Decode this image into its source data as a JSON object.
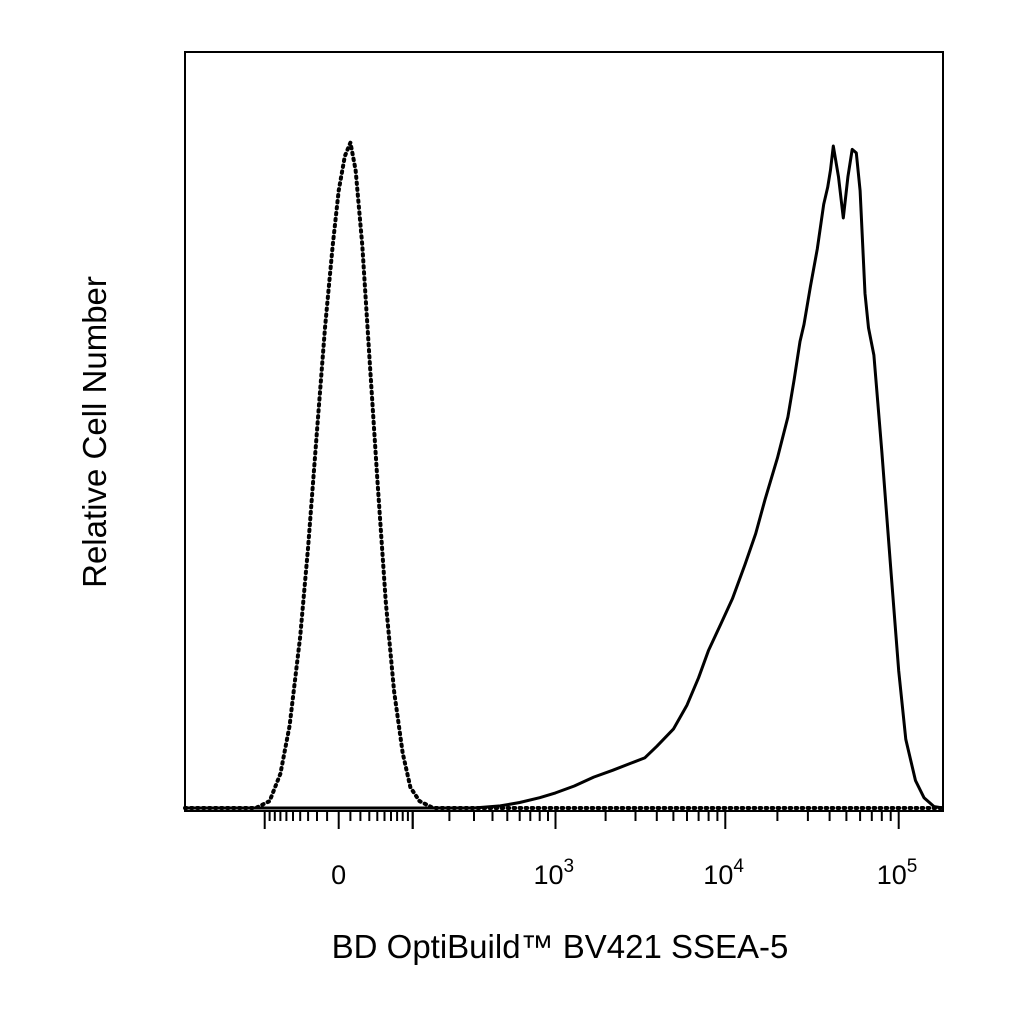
{
  "chart_data": {
    "type": "histogram",
    "title": "",
    "xlabel": "BD OptiBuild™ BV421 SSEA-5",
    "ylabel": "Relative Cell Number",
    "x_scale": "biexponential",
    "xlim": [
      -400,
      180000
    ],
    "ylim": [
      0,
      100
    ],
    "grid": false,
    "legend": "none",
    "x_tick_labels": [
      {
        "value": 0,
        "base": "0",
        "exp": ""
      },
      {
        "value": 1000,
        "base": "10",
        "exp": "3"
      },
      {
        "value": 10000,
        "base": "10",
        "exp": "4"
      },
      {
        "value": 100000,
        "base": "10",
        "exp": "5"
      }
    ],
    "series": [
      {
        "style": "dotted",
        "color": "#000000",
        "points": [
          [
            -400,
            0
          ],
          [
            -120,
            0
          ],
          [
            -90,
            1
          ],
          [
            -70,
            5
          ],
          [
            -55,
            12
          ],
          [
            -40,
            25
          ],
          [
            -30,
            38
          ],
          [
            -20,
            55
          ],
          [
            -12,
            70
          ],
          [
            -5,
            82
          ],
          [
            0,
            90
          ],
          [
            5,
            95
          ],
          [
            10,
            97
          ],
          [
            15,
            93
          ],
          [
            22,
            82
          ],
          [
            30,
            66
          ],
          [
            40,
            48
          ],
          [
            52,
            30
          ],
          [
            65,
            17
          ],
          [
            80,
            8
          ],
          [
            95,
            3
          ],
          [
            115,
            1
          ],
          [
            150,
            0
          ],
          [
            1000,
            0
          ],
          [
            10000,
            0
          ],
          [
            180000,
            0
          ]
        ]
      },
      {
        "style": "solid",
        "color": "#000000",
        "points": [
          [
            -400,
            0
          ],
          [
            300,
            0
          ],
          [
            450,
            0.3
          ],
          [
            600,
            0.8
          ],
          [
            800,
            1.5
          ],
          [
            1000,
            2.2
          ],
          [
            1300,
            3.2
          ],
          [
            1700,
            4.5
          ],
          [
            2200,
            5.5
          ],
          [
            2800,
            6.5
          ],
          [
            3400,
            7.3
          ],
          [
            4000,
            9
          ],
          [
            5000,
            11.5
          ],
          [
            6000,
            15
          ],
          [
            7000,
            19
          ],
          [
            8000,
            23
          ],
          [
            9500,
            27
          ],
          [
            11000,
            30.5
          ],
          [
            13000,
            35.5
          ],
          [
            15000,
            40
          ],
          [
            17000,
            45
          ],
          [
            20000,
            51
          ],
          [
            23000,
            57
          ],
          [
            25000,
            62.5
          ],
          [
            27000,
            68
          ],
          [
            28500,
            70.5
          ],
          [
            31000,
            76
          ],
          [
            34000,
            81.5
          ],
          [
            37000,
            88
          ],
          [
            39000,
            90.5
          ],
          [
            40500,
            93
          ],
          [
            42000,
            96.5
          ],
          [
            45000,
            92
          ],
          [
            48000,
            86
          ],
          [
            51000,
            92
          ],
          [
            54000,
            96
          ],
          [
            57000,
            95.5
          ],
          [
            60000,
            90
          ],
          [
            64000,
            75
          ],
          [
            67000,
            70
          ],
          [
            72000,
            66
          ],
          [
            80000,
            52
          ],
          [
            90000,
            35
          ],
          [
            100000,
            20
          ],
          [
            110000,
            10
          ],
          [
            125000,
            4
          ],
          [
            140000,
            1.5
          ],
          [
            160000,
            0.2
          ],
          [
            180000,
            0
          ]
        ]
      }
    ]
  }
}
